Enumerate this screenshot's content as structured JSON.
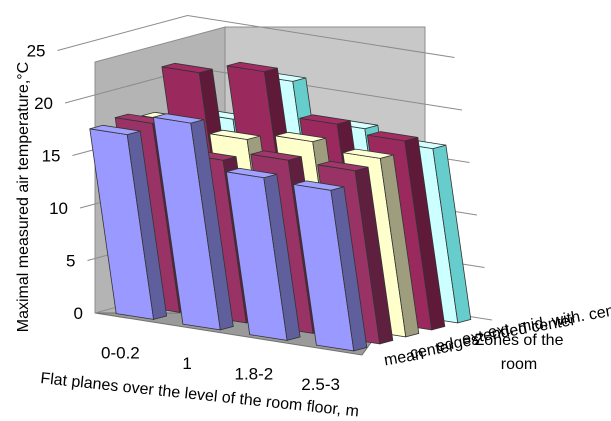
{
  "chart_data": {
    "type": "bar",
    "subtype": "3d-column",
    "title": "",
    "xlabel": "Flat planes over the level of the room floor, m",
    "ylabel": "Maximal measured air temperature,°C",
    "zlabel": "Zones of the room",
    "categories": [
      "0-0.2",
      "1",
      "1.8-2",
      "2.5-3"
    ],
    "ylim": [
      0,
      25
    ],
    "yticks": [
      0,
      5,
      10,
      15,
      20,
      25
    ],
    "grid": true,
    "series": [
      {
        "name": "mean",
        "color": "#9999ff",
        "values": [
          17.6,
          19.7,
          15.5,
          15.3
        ]
      },
      {
        "name": "center",
        "color": "#993366",
        "values": [
          18.0,
          15.5,
          16.5,
          16.5
        ]
      },
      {
        "name": "edges",
        "color": "#ffffcc",
        "values": [
          17.5,
          16.8,
          17.6,
          17.0
        ]
      },
      {
        "name": "extended center",
        "color": "#9a2a5e",
        "values": [
          21.5,
          22.6,
          18.6,
          18.0
        ]
      },
      {
        "name": "ext. mid. with. cent.",
        "color": "#ccffff",
        "values": [
          16.4,
          21.0,
          17.5,
          16.6
        ]
      }
    ],
    "series_extra_colors": {
      "ext. mid. with. cent._side": "#66cccc"
    }
  }
}
